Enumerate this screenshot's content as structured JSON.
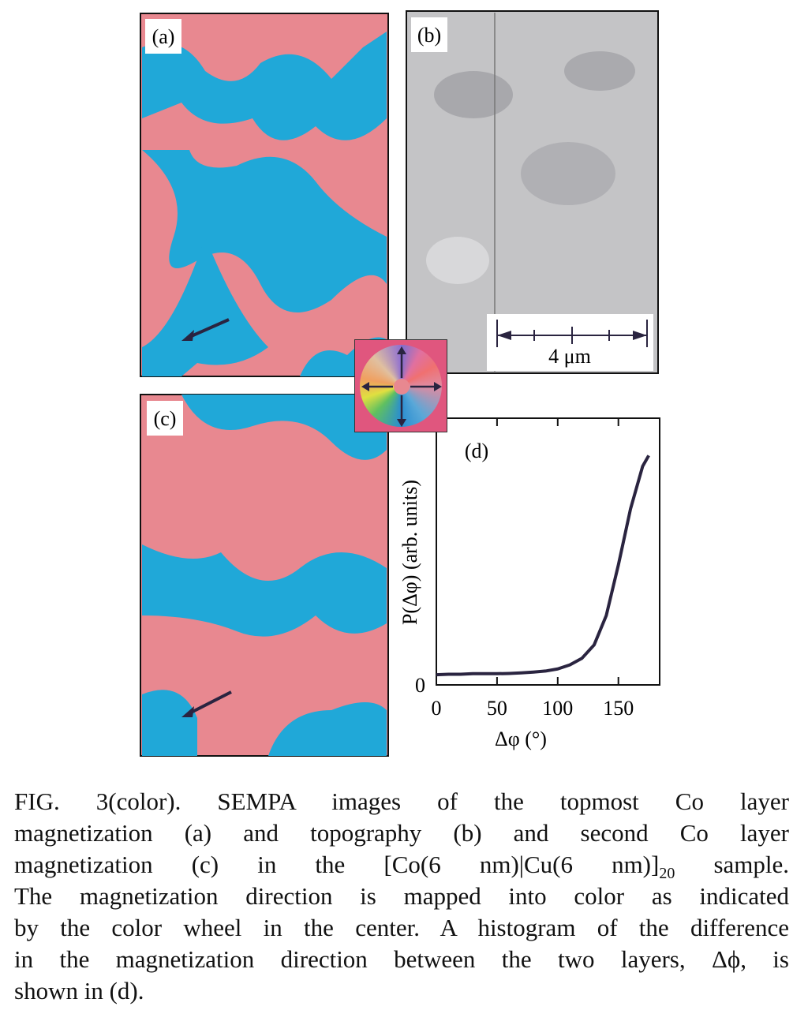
{
  "panels": [
    {
      "label": "(a)"
    },
    {
      "label": "(b)",
      "scale_bar": "4 μm"
    },
    {
      "label": "(c)"
    }
  ],
  "chart_data": {
    "type": "line",
    "label": "(d)",
    "xlabel": "Δφ (°)",
    "ylabel": "P(Δφ) (arb. units)",
    "x": [
      0,
      10,
      20,
      30,
      40,
      50,
      60,
      70,
      80,
      90,
      100,
      110,
      120,
      130,
      140,
      150,
      160,
      170,
      175
    ],
    "series": [
      {
        "color": "#2a2440",
        "values": [
          0.38,
          0.4,
          0.4,
          0.42,
          0.42,
          0.42,
          0.43,
          0.45,
          0.48,
          0.52,
          0.6,
          0.75,
          1.0,
          1.5,
          2.6,
          4.5,
          6.6,
          8.2,
          8.6
        ]
      }
    ],
    "xlim": [
      0,
      184
    ],
    "ylim": [
      0,
      10
    ],
    "xticks": [
      0,
      50,
      100,
      150
    ],
    "yticks": [
      0
    ]
  },
  "caption": {
    "lines": [
      [
        "FIG. 3(color).  SEMPA images of the topmost Co layer"
      ],
      [
        "magnetization (a) and topography (b) and second Co layer"
      ],
      [
        "magnetization (c) in the [Co(6 nm)|Cu(6 nm)]",
        "20",
        "  sample."
      ],
      [
        "The magnetization direction is mapped into color as indicated"
      ],
      [
        "by the color wheel in the center.  A histogram of the difference"
      ],
      [
        "in the magnetization direction between the two layers, Δϕ, is"
      ],
      [
        "shown in (d)."
      ]
    ]
  }
}
